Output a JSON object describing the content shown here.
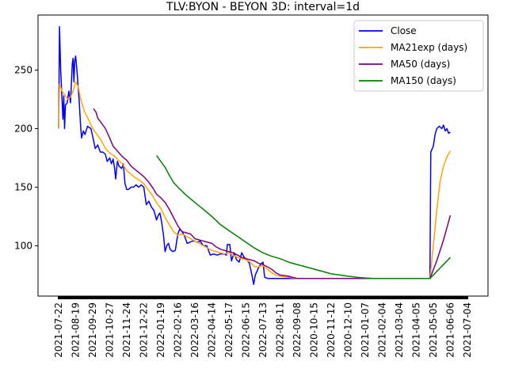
{
  "chart_data": {
    "type": "line",
    "title": "TLV:BYON - BEYON 3D: interval=1d",
    "xlabel": "",
    "ylabel": "",
    "ylim": [
      57,
      297
    ],
    "yticks": [
      100,
      150,
      200,
      250
    ],
    "x_tick_labels": [
      "2021-07-22",
      "2021-08-19",
      "2021-09-29",
      "2021-10-27",
      "2021-11-24",
      "2021-12-22",
      "2022-01-19",
      "2022-02-16",
      "2022-03-16",
      "2022-04-14",
      "2022-05-17",
      "2022-06-15",
      "2022-07-13",
      "2022-08-11",
      "2022-09-08",
      "2020-10-15",
      "2020-11-12",
      "2020-12-10",
      "2021-01-07",
      "2021-02-04",
      "2021-03-04",
      "2021-04-05",
      "2021-05-05",
      "2021-06-06",
      "2021-07-04"
    ],
    "x_index_range": [
      0,
      24
    ],
    "legend_position": "upper-right",
    "grid": false,
    "series": [
      {
        "name": "Close",
        "color": "#0000ff",
        "points": [
          [
            0.0,
            200
          ],
          [
            0.05,
            287
          ],
          [
            0.12,
            250
          ],
          [
            0.2,
            225
          ],
          [
            0.25,
            208
          ],
          [
            0.3,
            228
          ],
          [
            0.35,
            200
          ],
          [
            0.4,
            220
          ],
          [
            0.5,
            222
          ],
          [
            0.6,
            232
          ],
          [
            0.7,
            222
          ],
          [
            0.8,
            255
          ],
          [
            0.85,
            260
          ],
          [
            0.9,
            240
          ],
          [
            0.95,
            258
          ],
          [
            1.0,
            262
          ],
          [
            1.1,
            245
          ],
          [
            1.2,
            225
          ],
          [
            1.3,
            200
          ],
          [
            1.35,
            192
          ],
          [
            1.45,
            198
          ],
          [
            1.55,
            195
          ],
          [
            1.7,
            202
          ],
          [
            1.9,
            200
          ],
          [
            2.05,
            190
          ],
          [
            2.15,
            183
          ],
          [
            2.3,
            186
          ],
          [
            2.45,
            180
          ],
          [
            2.6,
            180
          ],
          [
            2.75,
            178
          ],
          [
            2.85,
            172
          ],
          [
            3.0,
            175
          ],
          [
            3.1,
            170
          ],
          [
            3.2,
            174
          ],
          [
            3.3,
            165
          ],
          [
            3.35,
            157
          ],
          [
            3.45,
            172
          ],
          [
            3.55,
            168
          ],
          [
            3.7,
            166
          ],
          [
            3.8,
            170
          ],
          [
            3.9,
            153
          ],
          [
            4.0,
            148
          ],
          [
            4.1,
            148
          ],
          [
            4.25,
            150
          ],
          [
            4.4,
            150
          ],
          [
            4.55,
            152
          ],
          [
            4.7,
            150
          ],
          [
            4.85,
            152
          ],
          [
            5.0,
            150
          ],
          [
            5.15,
            135
          ],
          [
            5.3,
            138
          ],
          [
            5.45,
            133
          ],
          [
            5.6,
            130
          ],
          [
            5.75,
            122
          ],
          [
            5.85,
            126
          ],
          [
            5.95,
            128
          ],
          [
            6.05,
            120
          ],
          [
            6.15,
            110
          ],
          [
            6.25,
            95
          ],
          [
            6.35,
            100
          ],
          [
            6.45,
            102
          ],
          [
            6.55,
            97
          ],
          [
            6.7,
            95
          ],
          [
            6.85,
            96
          ],
          [
            7.0,
            110
          ],
          [
            7.1,
            114
          ],
          [
            7.25,
            112
          ],
          [
            7.4,
            108
          ],
          [
            7.55,
            102
          ],
          [
            7.7,
            103
          ],
          [
            7.85,
            104
          ],
          [
            8.0,
            104
          ],
          [
            8.15,
            103
          ],
          [
            8.3,
            104
          ],
          [
            8.5,
            100
          ],
          [
            8.7,
            100
          ],
          [
            8.9,
            92
          ],
          [
            9.1,
            93
          ],
          [
            9.3,
            92
          ],
          [
            9.5,
            93
          ],
          [
            9.7,
            93
          ],
          [
            9.85,
            92
          ],
          [
            9.9,
            101
          ],
          [
            10.05,
            101
          ],
          [
            10.15,
            87
          ],
          [
            10.3,
            94
          ],
          [
            10.45,
            88
          ],
          [
            10.6,
            86
          ],
          [
            10.75,
            94
          ],
          [
            10.9,
            90
          ],
          [
            11.05,
            88
          ],
          [
            11.2,
            85
          ],
          [
            11.35,
            75
          ],
          [
            11.45,
            67
          ],
          [
            11.55,
            75
          ],
          [
            11.7,
            80
          ],
          [
            11.85,
            84
          ],
          [
            12.0,
            86
          ],
          [
            12.1,
            73
          ],
          [
            12.3,
            72
          ],
          [
            12.5,
            72
          ],
          [
            12.7,
            72
          ],
          [
            13.0,
            72
          ],
          [
            13.5,
            72
          ],
          [
            14.0,
            72
          ],
          [
            15.0,
            72
          ],
          [
            16.0,
            72
          ],
          [
            17.0,
            72
          ],
          [
            18.0,
            72
          ],
          [
            19.0,
            72
          ],
          [
            20.0,
            72
          ],
          [
            21.0,
            72
          ],
          [
            21.8,
            72
          ],
          [
            21.85,
            180
          ],
          [
            22.0,
            185
          ],
          [
            22.1,
            195
          ],
          [
            22.2,
            200
          ],
          [
            22.35,
            202
          ],
          [
            22.5,
            200
          ],
          [
            22.6,
            203
          ],
          [
            22.7,
            198
          ],
          [
            22.8,
            200
          ],
          [
            22.9,
            196
          ],
          [
            23.0,
            197
          ]
        ]
      },
      {
        "name": "MA21exp (days)",
        "color": "#ffa500",
        "points": [
          [
            0.0,
            200
          ],
          [
            0.05,
            238
          ],
          [
            0.2,
            232
          ],
          [
            0.4,
            228
          ],
          [
            0.55,
            225
          ],
          [
            0.7,
            227
          ],
          [
            0.85,
            232
          ],
          [
            1.0,
            240
          ],
          [
            1.15,
            236
          ],
          [
            1.3,
            225
          ],
          [
            1.5,
            215
          ],
          [
            1.75,
            208
          ],
          [
            2.0,
            200
          ],
          [
            2.25,
            195
          ],
          [
            2.5,
            190
          ],
          [
            2.75,
            183
          ],
          [
            3.0,
            179
          ],
          [
            3.25,
            177
          ],
          [
            3.5,
            173
          ],
          [
            3.75,
            170
          ],
          [
            4.0,
            164
          ],
          [
            4.25,
            161
          ],
          [
            4.5,
            158
          ],
          [
            4.75,
            156
          ],
          [
            5.0,
            153
          ],
          [
            5.25,
            148
          ],
          [
            5.5,
            143
          ],
          [
            5.75,
            137
          ],
          [
            6.0,
            132
          ],
          [
            6.25,
            124
          ],
          [
            6.5,
            118
          ],
          [
            6.75,
            112
          ],
          [
            7.0,
            109
          ],
          [
            7.25,
            110
          ],
          [
            7.5,
            108
          ],
          [
            7.75,
            106
          ],
          [
            8.0,
            104
          ],
          [
            8.25,
            102
          ],
          [
            8.5,
            100
          ],
          [
            8.75,
            98
          ],
          [
            9.0,
            96
          ],
          [
            9.25,
            95
          ],
          [
            9.5,
            94
          ],
          [
            9.75,
            93
          ],
          [
            10.0,
            94
          ],
          [
            10.25,
            92
          ],
          [
            10.5,
            90
          ],
          [
            10.75,
            89
          ],
          [
            11.0,
            88
          ],
          [
            11.25,
            86
          ],
          [
            11.5,
            82
          ],
          [
            11.75,
            82
          ],
          [
            12.0,
            83
          ],
          [
            12.25,
            80
          ],
          [
            12.5,
            77
          ],
          [
            12.75,
            75
          ],
          [
            13.0,
            74
          ],
          [
            13.5,
            73
          ],
          [
            14.0,
            72
          ],
          [
            15.0,
            72
          ],
          [
            16.0,
            72
          ],
          [
            17.0,
            72
          ],
          [
            18.0,
            72
          ],
          [
            19.0,
            72
          ],
          [
            20.0,
            72
          ],
          [
            21.0,
            72
          ],
          [
            21.8,
            72
          ],
          [
            22.0,
            100
          ],
          [
            22.2,
            130
          ],
          [
            22.4,
            155
          ],
          [
            22.6,
            168
          ],
          [
            22.8,
            176
          ],
          [
            23.0,
            181
          ]
        ]
      },
      {
        "name": "MA50 (days)",
        "color": "#800080",
        "points": [
          [
            2.05,
            217
          ],
          [
            2.2,
            214
          ],
          [
            2.3,
            209
          ],
          [
            2.5,
            205
          ],
          [
            2.75,
            200
          ],
          [
            3.0,
            192
          ],
          [
            3.2,
            185
          ],
          [
            3.5,
            180
          ],
          [
            3.75,
            176
          ],
          [
            4.0,
            173
          ],
          [
            4.25,
            168
          ],
          [
            4.5,
            165
          ],
          [
            4.75,
            162
          ],
          [
            5.0,
            159
          ],
          [
            5.25,
            155
          ],
          [
            5.5,
            150
          ],
          [
            5.75,
            144
          ],
          [
            6.0,
            141
          ],
          [
            6.25,
            137
          ],
          [
            6.5,
            131
          ],
          [
            6.75,
            124
          ],
          [
            7.0,
            117
          ],
          [
            7.25,
            112
          ],
          [
            7.5,
            111
          ],
          [
            7.75,
            110
          ],
          [
            8.0,
            106
          ],
          [
            8.25,
            105
          ],
          [
            8.5,
            104
          ],
          [
            8.75,
            103
          ],
          [
            9.0,
            102
          ],
          [
            9.25,
            99
          ],
          [
            9.5,
            97
          ],
          [
            9.75,
            96
          ],
          [
            10.0,
            95
          ],
          [
            10.25,
            94
          ],
          [
            10.5,
            92
          ],
          [
            10.75,
            90
          ],
          [
            11.0,
            89
          ],
          [
            11.25,
            88
          ],
          [
            11.5,
            87
          ],
          [
            11.75,
            85
          ],
          [
            12.0,
            84
          ],
          [
            12.25,
            82
          ],
          [
            12.5,
            80
          ],
          [
            12.75,
            77
          ],
          [
            13.0,
            75
          ],
          [
            13.5,
            74
          ],
          [
            14.0,
            72
          ],
          [
            15.0,
            72
          ],
          [
            16.0,
            72
          ],
          [
            17.0,
            72
          ],
          [
            18.0,
            72
          ],
          [
            19.0,
            72
          ],
          [
            20.0,
            72
          ],
          [
            21.0,
            72
          ],
          [
            21.8,
            72
          ],
          [
            22.2,
            87
          ],
          [
            22.6,
            105
          ],
          [
            23.0,
            126
          ]
        ]
      },
      {
        "name": "MA150 (days)",
        "color": "#008000",
        "points": [
          [
            5.75,
            177
          ],
          [
            6.0,
            172
          ],
          [
            6.25,
            167
          ],
          [
            6.5,
            160
          ],
          [
            6.75,
            154
          ],
          [
            7.0,
            150
          ],
          [
            7.5,
            143
          ],
          [
            8.0,
            137
          ],
          [
            8.5,
            131
          ],
          [
            9.0,
            125
          ],
          [
            9.5,
            118
          ],
          [
            10.0,
            113
          ],
          [
            10.5,
            108
          ],
          [
            11.0,
            103
          ],
          [
            11.5,
            98
          ],
          [
            12.0,
            94
          ],
          [
            12.5,
            91
          ],
          [
            13.0,
            89
          ],
          [
            13.5,
            86
          ],
          [
            14.0,
            84
          ],
          [
            14.5,
            82
          ],
          [
            15.0,
            80
          ],
          [
            15.5,
            78
          ],
          [
            16.0,
            76
          ],
          [
            16.5,
            75
          ],
          [
            17.0,
            74
          ],
          [
            17.5,
            73
          ],
          [
            18.0,
            72.5
          ],
          [
            18.5,
            72
          ],
          [
            19.0,
            72
          ],
          [
            20.0,
            72
          ],
          [
            21.0,
            72
          ],
          [
            21.8,
            72
          ],
          [
            22.4,
            81
          ],
          [
            23.0,
            90
          ]
        ]
      }
    ]
  }
}
